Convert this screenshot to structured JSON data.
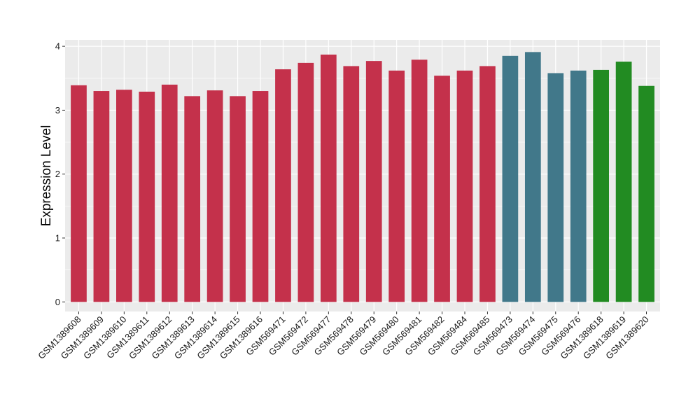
{
  "chart_data": {
    "type": "bar",
    "title": "",
    "xlabel": "",
    "ylabel": "Expression Level",
    "ylim": [
      -0.15,
      4.1
    ],
    "yticks": [
      0,
      1,
      2,
      3,
      4
    ],
    "grid": true,
    "legend": "none",
    "categories": [
      "GSM1389608",
      "GSM1389609",
      "GSM1389610",
      "GSM1389611",
      "GSM1389612",
      "GSM1389613",
      "GSM1389614",
      "GSM1389615",
      "GSM1389616",
      "GSM569471",
      "GSM569472",
      "GSM569477",
      "GSM569478",
      "GSM569479",
      "GSM569480",
      "GSM569481",
      "GSM569482",
      "GSM569484",
      "GSM569485",
      "GSM569473",
      "GSM569474",
      "GSM569475",
      "GSM569476",
      "GSM1389618",
      "GSM1389619",
      "GSM1389620"
    ],
    "values": [
      3.39,
      3.3,
      3.32,
      3.29,
      3.4,
      3.22,
      3.31,
      3.22,
      3.3,
      3.64,
      3.74,
      3.87,
      3.69,
      3.77,
      3.62,
      3.79,
      3.54,
      3.62,
      3.69,
      3.85,
      3.91,
      3.58,
      3.62,
      3.63,
      3.76,
      3.38
    ],
    "bar_colors": [
      "#c4314b",
      "#c4314b",
      "#c4314b",
      "#c4314b",
      "#c4314b",
      "#c4314b",
      "#c4314b",
      "#c4314b",
      "#c4314b",
      "#c4314b",
      "#c4314b",
      "#c4314b",
      "#c4314b",
      "#c4314b",
      "#c4314b",
      "#c4314b",
      "#c4314b",
      "#c4314b",
      "#c4314b",
      "#41788a",
      "#41788a",
      "#41788a",
      "#41788a",
      "#228b22",
      "#228b22",
      "#228b22"
    ],
    "panel_background": "#ebebeb",
    "grid_color": "#ffffff"
  }
}
